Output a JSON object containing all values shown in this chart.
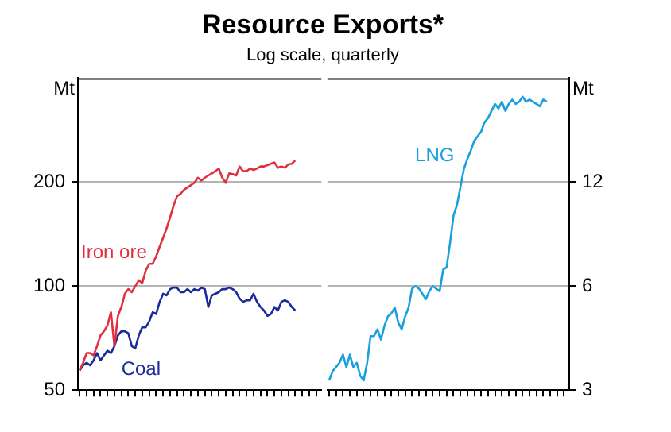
{
  "chart_data": [
    {
      "type": "line",
      "title": "Resource Exports*",
      "subtitle": "Log scale, quarterly",
      "ylabel": "Mt",
      "log": "y",
      "grid": "y",
      "legend": false,
      "categories": [
        null,
        null,
        null,
        null,
        null,
        null,
        null,
        null,
        null,
        null,
        null,
        null,
        null,
        null,
        null,
        null,
        null,
        null,
        null,
        null,
        null,
        null,
        null,
        null,
        null,
        null,
        null,
        null,
        null,
        null,
        null,
        null,
        null,
        null,
        null,
        null,
        null,
        null,
        null,
        null,
        null,
        null,
        null,
        null,
        null,
        null,
        null,
        null,
        null,
        null,
        null,
        null,
        null,
        null,
        null,
        null,
        null,
        null,
        null,
        null,
        null,
        null,
        null,
        null,
        null,
        null,
        null,
        null,
        null,
        null
      ],
      "ylim": [
        50,
        400
      ],
      "yticks": [
        50,
        100,
        200
      ],
      "series": [
        {
          "name": "Iron ore",
          "color": "#e0303c",
          "values": [
            57,
            60,
            64,
            64,
            63,
            67,
            72,
            74,
            77,
            84,
            67,
            82,
            87,
            95,
            98,
            96,
            100,
            104,
            102,
            111,
            116,
            116,
            122,
            130,
            138,
            147,
            158,
            171,
            182,
            185,
            190,
            193,
            196,
            199,
            206,
            202,
            206,
            209,
            212,
            215,
            219,
            206,
            199,
            212,
            211,
            209,
            222,
            215,
            215,
            219,
            217,
            219,
            222,
            222,
            224,
            226,
            228,
            220,
            222,
            220,
            225,
            226,
            231,
            null,
            null,
            null,
            null,
            null,
            null,
            null
          ]
        },
        {
          "name": "Coal",
          "color": "#1a2a9a",
          "values": [
            57,
            59,
            60,
            59,
            61,
            64,
            61,
            63,
            65,
            64,
            67,
            72,
            74,
            74,
            73,
            67,
            66,
            72,
            76,
            76,
            79,
            84,
            83,
            90,
            95,
            94,
            98,
            99,
            99,
            96,
            96,
            98,
            96,
            98,
            97,
            99,
            98,
            87,
            94,
            95,
            96,
            98,
            98,
            99,
            98,
            96,
            92,
            90,
            91,
            91,
            95,
            90,
            87,
            85,
            82,
            83,
            87,
            85,
            90,
            91,
            90,
            87,
            85,
            null,
            null,
            null,
            null,
            null,
            null,
            null
          ]
        }
      ]
    },
    {
      "type": "line",
      "ylabel": "Mt",
      "log": "y",
      "grid": "y",
      "legend": false,
      "categories": [
        null,
        null,
        null,
        null,
        null,
        null,
        null,
        null,
        null,
        null,
        null,
        null,
        null,
        null,
        null,
        null,
        null,
        null,
        null,
        null,
        null,
        null,
        null,
        null,
        null,
        null,
        null,
        null,
        null,
        null,
        null,
        null,
        null,
        null,
        null,
        null,
        null,
        null,
        null,
        null,
        null,
        null,
        null,
        null,
        null,
        null,
        null,
        null,
        null,
        null,
        null,
        null,
        null,
        null,
        null,
        null,
        null,
        null,
        null,
        null,
        null,
        null,
        null,
        null,
        null,
        null,
        null,
        null,
        null,
        null
      ],
      "ylim": [
        3,
        24
      ],
      "yticks": [
        3,
        6,
        12
      ],
      "series": [
        {
          "name": "LNG",
          "color": "#1aa0dc",
          "values": [
            3.2,
            3.4,
            3.5,
            3.6,
            3.8,
            3.5,
            3.8,
            3.5,
            3.6,
            3.3,
            3.2,
            3.6,
            4.3,
            4.3,
            4.5,
            4.2,
            4.6,
            4.9,
            5.0,
            5.2,
            4.7,
            4.5,
            4.9,
            5.2,
            5.9,
            6.0,
            5.9,
            5.7,
            5.5,
            5.8,
            6.0,
            5.9,
            5.8,
            6.7,
            6.8,
            8.0,
            9.6,
            10.3,
            11.6,
            13.1,
            14.0,
            14.8,
            15.8,
            16.3,
            16.8,
            17.9,
            18.4,
            19.3,
            20.2,
            19.6,
            20.5,
            19.3,
            20.2,
            20.8,
            20.2,
            20.5,
            21.2,
            20.5,
            20.8,
            20.5,
            20.2,
            19.9,
            20.8,
            20.5,
            null,
            null,
            null,
            null,
            null,
            null
          ]
        }
      ]
    }
  ]
}
